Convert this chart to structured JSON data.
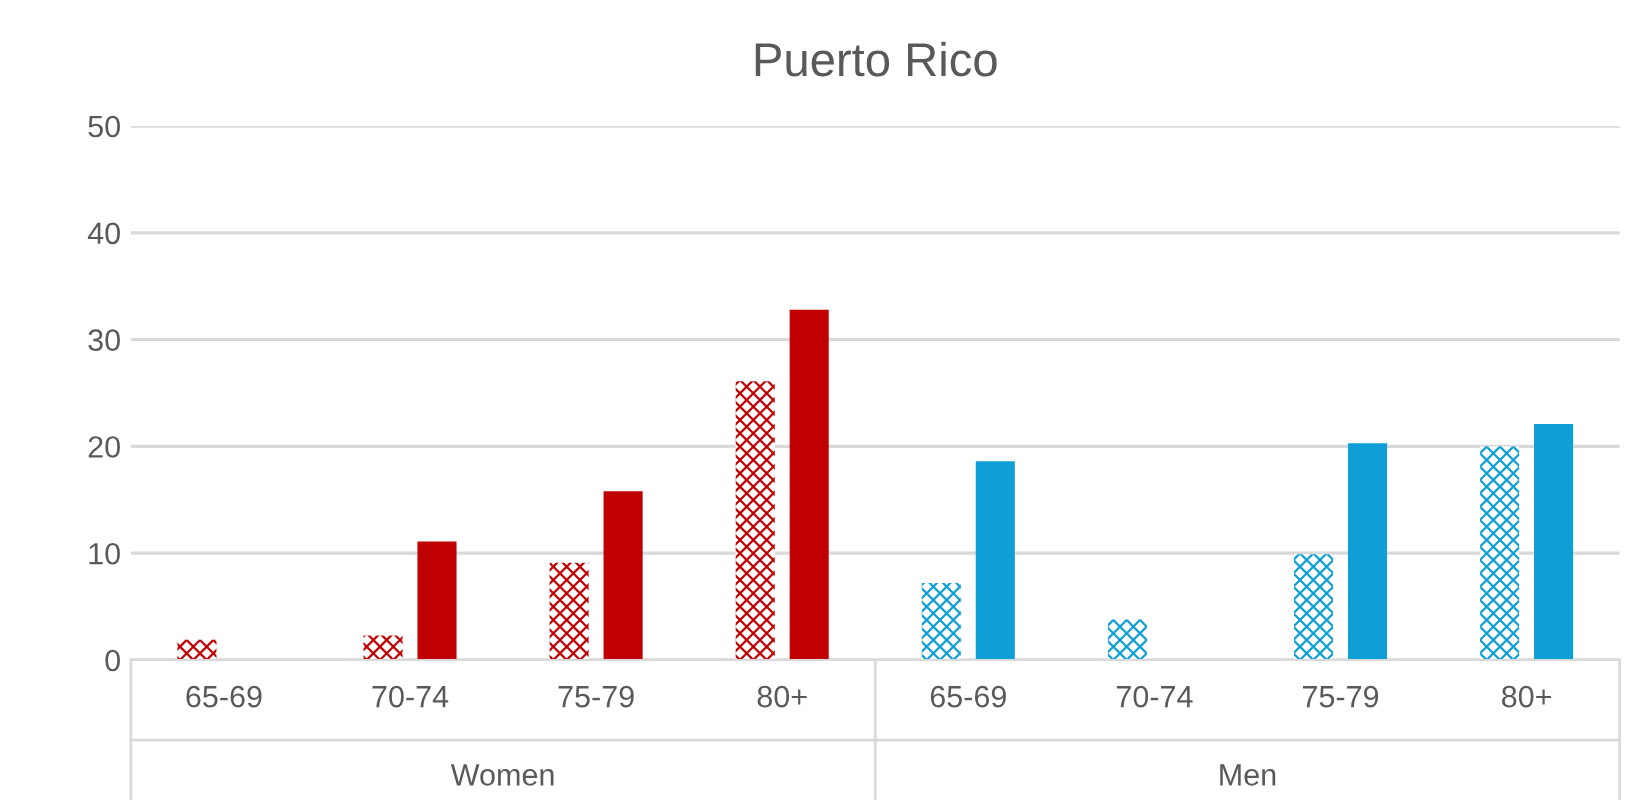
{
  "chart_data": {
    "type": "bar",
    "title": "Puerto Rico",
    "categories": [
      "65-69",
      "70-74",
      "75-79",
      "80+",
      "65-69",
      "70-74",
      "75-79",
      "80+"
    ],
    "series": [
      {
        "colors": [
          "#c00000",
          "#c00000",
          "#c00000",
          "#c00000",
          "#0e9fd6",
          "#0e9fd6",
          "#0e9fd6",
          "#0e9fd6"
        ],
        "values": [
          1.9,
          2.3,
          9.1,
          26.1,
          7.2,
          3.8,
          9.9,
          20.0
        ]
      },
      {
        "colors": [
          "#c00000",
          "#c00000",
          "#c00000",
          "#c00000",
          "#0e9fd6",
          "#0e9fd6",
          "#0e9fd6",
          "#0e9fd6"
        ],
        "values": [
          0,
          11.1,
          15.8,
          32.8,
          18.6,
          0,
          20.3,
          22.1
        ]
      }
    ],
    "annotations": [
      "Women",
      "Men"
    ],
    "ylim": [
      0,
      50
    ],
    "yticks": [
      0,
      10,
      20,
      30,
      40,
      50
    ],
    "grid": "y",
    "legend": false
  }
}
